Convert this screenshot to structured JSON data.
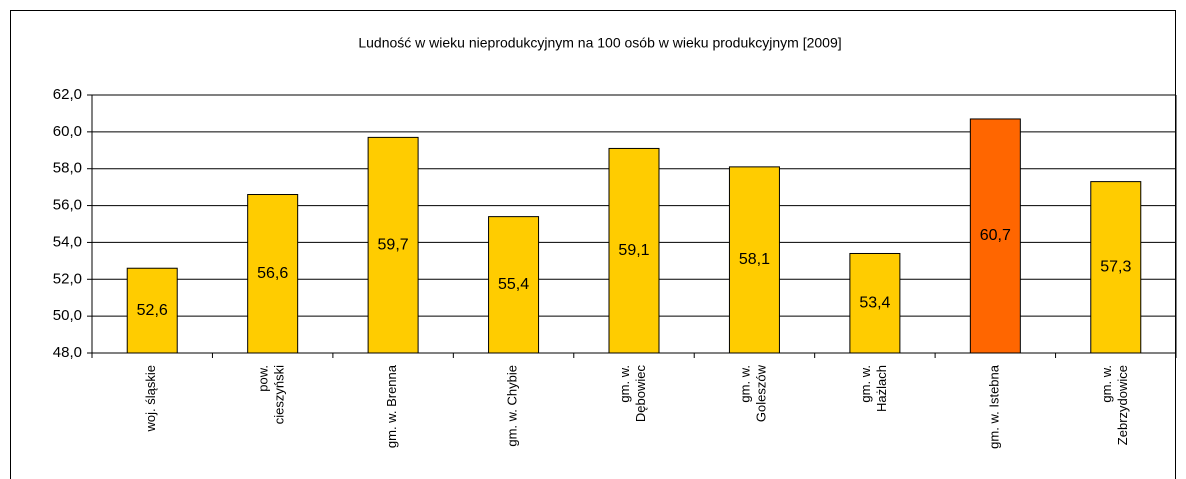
{
  "chart_data": {
    "type": "bar",
    "title": "Ludność w wieku nieprodukcyjnym na 100 osób w wieku produkcyjnym [2009]",
    "categories": [
      "woj. śląskie",
      "pow.\ncieszyński",
      "gm. w. Brenna",
      "gm. w. Chybie",
      "gm. w.\nDębowiec",
      "gm. w.\nGoleszów",
      "gm. w.\nHażlach",
      "gm. w. Istebna",
      "gm. w.\nZebrzydowice"
    ],
    "values": [
      52.6,
      56.6,
      59.7,
      55.4,
      59.1,
      58.1,
      53.4,
      60.7,
      57.3
    ],
    "value_labels": [
      "52,6",
      "56,6",
      "59,7",
      "55,4",
      "59,1",
      "58,1",
      "53,4",
      "60,7",
      "57,3"
    ],
    "colors": [
      "#ffcc00",
      "#ffcc00",
      "#ffcc00",
      "#ffcc00",
      "#ffcc00",
      "#ffcc00",
      "#ffcc00",
      "#ff6600",
      "#ffcc00"
    ],
    "ylim": [
      48,
      62
    ],
    "yticks": [
      {
        "value": 48,
        "label": "48,0"
      },
      {
        "value": 50,
        "label": "50,0"
      },
      {
        "value": 52,
        "label": "52,0"
      },
      {
        "value": 54,
        "label": "54,0"
      },
      {
        "value": 56,
        "label": "56,0"
      },
      {
        "value": 58,
        "label": "58,0"
      },
      {
        "value": 60,
        "label": "60,0"
      },
      {
        "value": 62,
        "label": "62,0"
      }
    ],
    "grid": true
  }
}
